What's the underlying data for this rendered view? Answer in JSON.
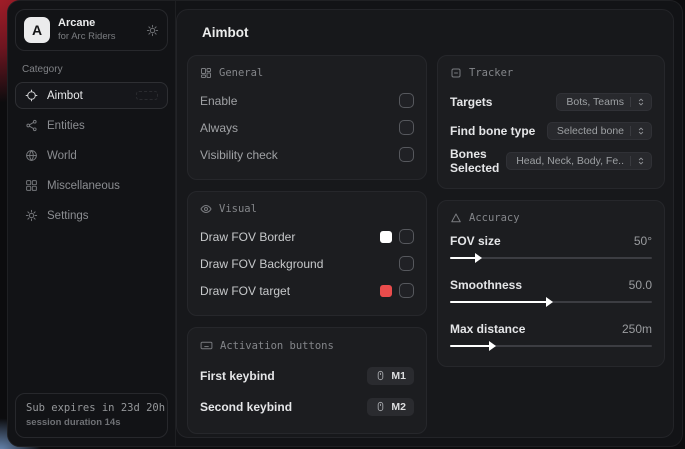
{
  "app": {
    "logo_letter": "A",
    "name": "Arcane",
    "subtitle": "for Arc Riders"
  },
  "sidebar": {
    "category_label": "Category",
    "items": [
      {
        "label": "Aimbot",
        "active": true
      },
      {
        "label": "Entities",
        "active": false
      },
      {
        "label": "World",
        "active": false
      },
      {
        "label": "Miscellaneous",
        "active": false
      },
      {
        "label": "Settings",
        "active": false
      }
    ],
    "footer": {
      "expiry": "Sub expires in 23d 20h",
      "session": "session duration 14s"
    }
  },
  "main": {
    "title": "Aimbot",
    "general": {
      "title": "General",
      "rows": [
        {
          "label": "Enable",
          "checked": false
        },
        {
          "label": "Always",
          "checked": false
        },
        {
          "label": "Visibility check",
          "checked": false
        }
      ]
    },
    "visual": {
      "title": "Visual",
      "rows": [
        {
          "label": "Draw FOV Border",
          "swatch": "#ffffff",
          "checked": false
        },
        {
          "label": "Draw FOV Background",
          "checked": false
        },
        {
          "label": "Draw FOV target",
          "swatch": "#e94c4c",
          "checked": false
        }
      ]
    },
    "activation": {
      "title": "Activation buttons",
      "rows": [
        {
          "label": "First keybind",
          "key": "M1"
        },
        {
          "label": "Second keybind",
          "key": "M2"
        }
      ]
    },
    "tracker": {
      "title": "Tracker",
      "rows": [
        {
          "label": "Targets",
          "value": "Bots, Teams"
        },
        {
          "label": "Find bone type",
          "value": "Selected bone"
        },
        {
          "label": "Bones Selected",
          "value": "Head, Neck, Body, Fe.."
        }
      ]
    },
    "accuracy": {
      "title": "Accuracy",
      "sliders": [
        {
          "label": "FOV size",
          "value": "50°",
          "percent": 14
        },
        {
          "label": "Smoothness",
          "value": "50.0",
          "percent": 49
        },
        {
          "label": "Max distance",
          "value": "250m",
          "percent": 21
        }
      ]
    }
  },
  "colors": {
    "accent_red": "#e94c4c",
    "swatch_white": "#ffffff",
    "slider_fill": "#ffffff"
  }
}
